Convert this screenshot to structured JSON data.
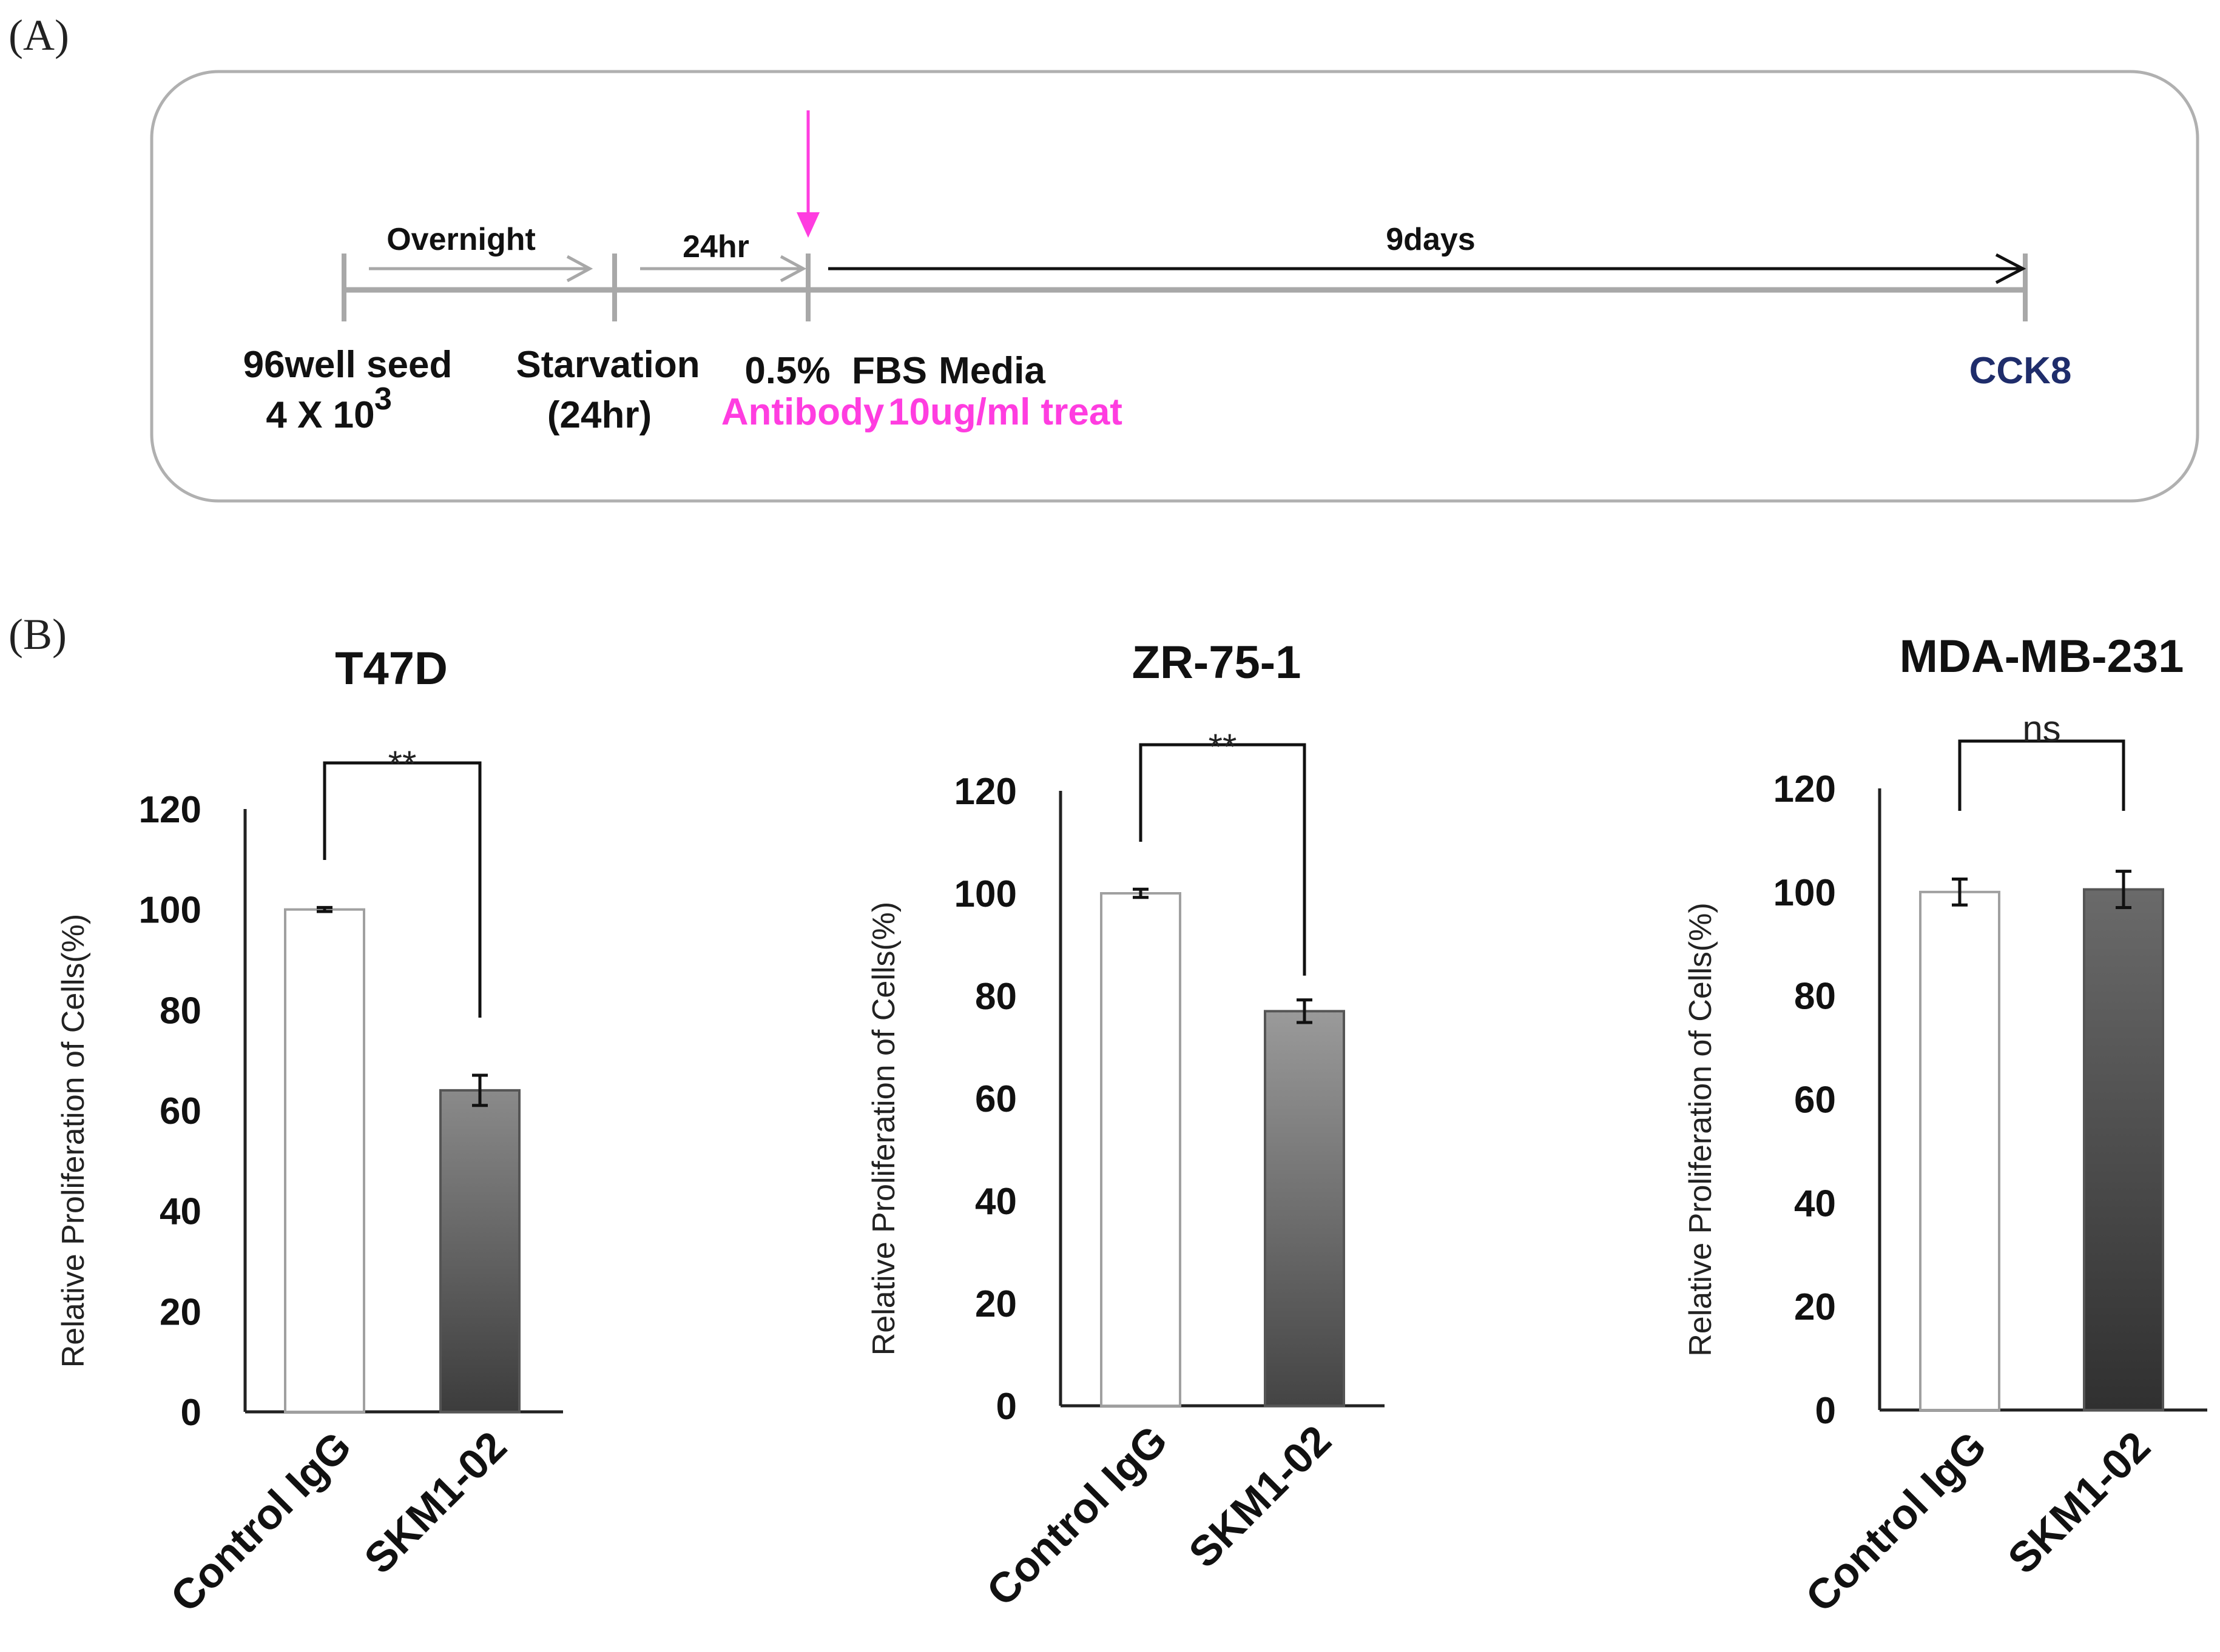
{
  "panel_a_label": "(A)",
  "panel_b_label": "(B)",
  "timeline": {
    "segments": [
      "Overnight",
      "24hr",
      "9days"
    ],
    "events": {
      "seed_line1": "96well seed",
      "seed_line2": "4 X 10",
      "seed_sup": "3",
      "starvation_line1": "Starvation",
      "starvation_line2": "(24hr)",
      "media_pct": "0.5%",
      "media_fbs": "FBS",
      "media_word": "Media",
      "antibody": "Antibody",
      "treat": "10ug/ml treat",
      "end": "CCK8"
    },
    "colors": {
      "line": "#a8a8a8",
      "pink": "#ff3de0",
      "navy": "#1f2d6b",
      "arrow": "#111111"
    }
  },
  "chart_data": [
    {
      "type": "bar",
      "title": "T47D",
      "categories": [
        "Control IgG",
        "SKM1-02"
      ],
      "values": [
        100,
        64
      ],
      "errors": [
        0.4,
        3
      ],
      "ylabel": "Relative Proliferation of Cells(%)",
      "xlabel": "",
      "ylim": [
        0,
        120
      ],
      "yticks": [
        "0",
        "20",
        "40",
        "60",
        "80",
        "100",
        "120"
      ],
      "significance": "**",
      "grid": false
    },
    {
      "type": "bar",
      "title": "ZR-75-1",
      "categories": [
        "Control IgG",
        "SKM1-02"
      ],
      "values": [
        100,
        77
      ],
      "errors": [
        0.8,
        2.2
      ],
      "ylabel": "Relative Proliferation of Cells(%)",
      "xlabel": "",
      "ylim": [
        0,
        120
      ],
      "yticks": [
        "0",
        "20",
        "40",
        "60",
        "80",
        "100",
        "120"
      ],
      "significance": "**",
      "grid": false
    },
    {
      "type": "bar",
      "title": "MDA-MB-231",
      "categories": [
        "Control IgG",
        "SKM1-02"
      ],
      "values": [
        100,
        100.5
      ],
      "errors": [
        2.5,
        3.5
      ],
      "ylabel": "Relative Proliferation of Cells(%)",
      "xlabel": "",
      "ylim": [
        0,
        120
      ],
      "yticks": [
        "0",
        "20",
        "40",
        "60",
        "80",
        "100",
        "120"
      ],
      "significance": "ns",
      "grid": false
    }
  ]
}
